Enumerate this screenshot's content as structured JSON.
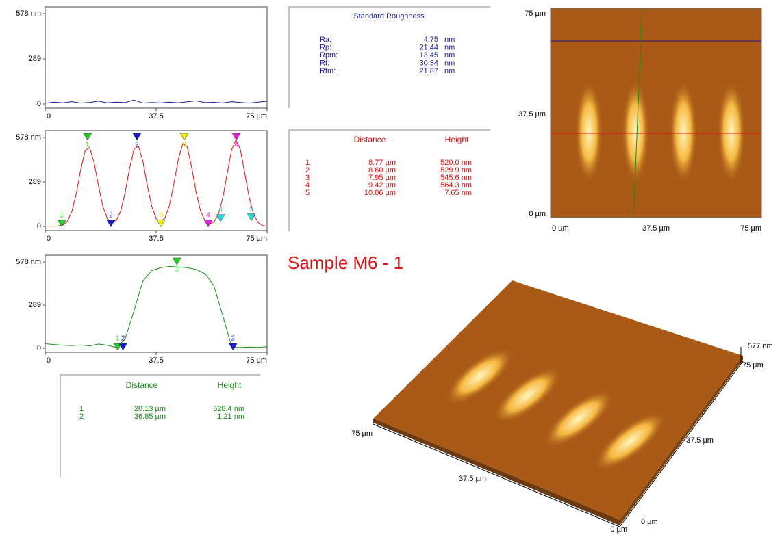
{
  "chart_data": [
    {
      "type": "line",
      "color": "#1a1a8c",
      "xlim": [
        0,
        75
      ],
      "ylim": [
        0,
        578
      ],
      "xticks": [
        0,
        37.5,
        {
          "value": 75,
          "label": "75 µm"
        }
      ],
      "yticks": [
        0,
        289,
        {
          "value": 578,
          "label": "578 nm"
        }
      ],
      "x": [
        0,
        3,
        6,
        9,
        12,
        15,
        18,
        21,
        24,
        27,
        30,
        33,
        36,
        39,
        42,
        45,
        48,
        51,
        54,
        57,
        60,
        63,
        66,
        69,
        72,
        75
      ],
      "values": [
        5,
        12,
        8,
        15,
        6,
        10,
        18,
        8,
        12,
        9,
        25,
        6,
        10,
        7,
        12,
        8,
        14,
        20,
        9,
        11,
        7,
        15,
        10,
        6,
        12,
        18
      ],
      "markers": []
    },
    {
      "type": "line",
      "color": "#e01010",
      "xlim": [
        0,
        75
      ],
      "ylim": [
        0,
        578
      ],
      "xticks": [
        0,
        37.5,
        {
          "value": 75,
          "label": "75 µm"
        }
      ],
      "yticks": [
        0,
        289,
        {
          "value": 578,
          "label": "578 nm"
        }
      ],
      "x": [
        0,
        1.5,
        3,
        4.5,
        6,
        7.5,
        9,
        10.5,
        12,
        13.5,
        15,
        16.5,
        18,
        19.5,
        21,
        22.5,
        24,
        25.5,
        27,
        28.5,
        30,
        31.5,
        33,
        34.5,
        36,
        37.5,
        39,
        40.5,
        42,
        43.5,
        45,
        46.5,
        48,
        49.5,
        51,
        52.5,
        54,
        55.5,
        57,
        58.5,
        60,
        61.5,
        63,
        64.5,
        66,
        67.5,
        69,
        70.5,
        72,
        73.5,
        75
      ],
      "values": [
        2,
        2,
        2,
        3,
        9,
        34,
        97,
        214,
        368,
        492,
        513,
        416,
        264,
        130,
        50,
        25,
        39,
        99,
        218,
        375,
        501,
        523,
        424,
        269,
        132,
        51,
        31,
        56,
        136,
        277,
        437,
        538,
        517,
        386,
        224,
        102,
        37,
        16,
        27,
        76,
        183,
        342,
        497,
        564,
        497,
        342,
        183,
        76,
        25,
        6,
        1
      ],
      "markers": [
        {
          "label": "1",
          "color": "#22cc22",
          "x": 5.6,
          "y": 15
        },
        {
          "label": "1",
          "color": "#22cc22",
          "x": 14.3,
          "y": 578
        },
        {
          "label": "2",
          "color": "#1a1acc",
          "x": 22.2,
          "y": 15
        },
        {
          "label": "2",
          "color": "#1a1acc",
          "x": 31,
          "y": 578
        },
        {
          "label": "3",
          "color": "#eeee00",
          "x": 39.1,
          "y": 15
        },
        {
          "label": "3",
          "color": "#eeee00",
          "x": 47,
          "y": 578
        },
        {
          "label": "4",
          "color": "#e020e0",
          "x": 55.1,
          "y": 15
        },
        {
          "label": "4",
          "color": "#e020e0",
          "x": 64.6,
          "y": 578
        },
        {
          "label": "4",
          "color": "#20dddd",
          "x": 59.3,
          "y": 50
        },
        {
          "label": "5",
          "color": "#20dddd",
          "x": 69.7,
          "y": 55
        }
      ]
    },
    {
      "type": "line",
      "color": "#1a8c1a",
      "xlim": [
        0,
        75
      ],
      "ylim": [
        0,
        578
      ],
      "xticks": [
        0,
        37.5,
        {
          "value": 75,
          "label": "75 µm"
        }
      ],
      "yticks": [
        0,
        289,
        {
          "value": 578,
          "label": "578 nm"
        }
      ],
      "x": [
        0,
        3,
        6,
        9,
        12,
        15,
        18,
        21,
        24,
        27,
        30,
        33,
        36,
        39,
        42,
        45,
        48,
        51,
        54,
        57,
        60,
        63,
        66,
        69,
        72,
        75
      ],
      "values": [
        30,
        25,
        20,
        18,
        22,
        15,
        28,
        20,
        5,
        60,
        250,
        450,
        520,
        540,
        548,
        545,
        540,
        528,
        500,
        420,
        220,
        10,
        5,
        8,
        6,
        10
      ],
      "markers": [
        {
          "label": "1",
          "color": "#22cc22",
          "x": 24.5,
          "y": 5
        },
        {
          "label": "2",
          "color": "#1a1acc",
          "x": 26.3,
          "y": 5
        },
        {
          "label": "1",
          "color": "#22cc22",
          "x": 44.5,
          "y": 578
        },
        {
          "label": "2",
          "color": "#1a1acc",
          "x": 63.5,
          "y": 5
        }
      ]
    }
  ],
  "roughness": {
    "title": "Standard Roughness",
    "rows": [
      [
        "Ra:",
        "4.75",
        "nm"
      ],
      [
        "Rp:",
        "21.44",
        "nm"
      ],
      [
        "Rpm:",
        "13.45",
        "nm"
      ],
      [
        "Rt:",
        "30.34",
        "nm"
      ],
      [
        "Rtm:",
        "21.87",
        "nm"
      ]
    ]
  },
  "table_red": {
    "header": [
      "Distance",
      "Height"
    ],
    "rows": [
      [
        "1",
        "8.77 µm",
        "520.0  nm"
      ],
      [
        "2",
        "8.60 µm",
        "529.9  nm"
      ],
      [
        "3",
        "7.95 µm",
        "545.6  nm"
      ],
      [
        "4",
        "9.42 µm",
        "564.3  nm"
      ],
      [
        "5",
        "10.06 µm",
        "7.65  nm"
      ]
    ]
  },
  "table_green": {
    "header": [
      "Distance",
      "Height"
    ],
    "rows": [
      [
        "1",
        "20.13 µm",
        "528.4  nm"
      ],
      [
        "2",
        "36.85 µm",
        "1.21  nm"
      ]
    ]
  },
  "sample_title": "Sample M6 - 1",
  "image_axes": {
    "y": [
      "75 µm",
      "37.5 µm",
      "0 µm"
    ],
    "x": [
      "0 µm",
      "37.5 µm",
      "75 µm"
    ]
  },
  "view3d_axes": {
    "z": "577 nm",
    "right": [
      "75 µm",
      "37.5 µm",
      "0 µm"
    ],
    "left": [
      "75 µm",
      "37.5 µm",
      "0 µm"
    ]
  }
}
